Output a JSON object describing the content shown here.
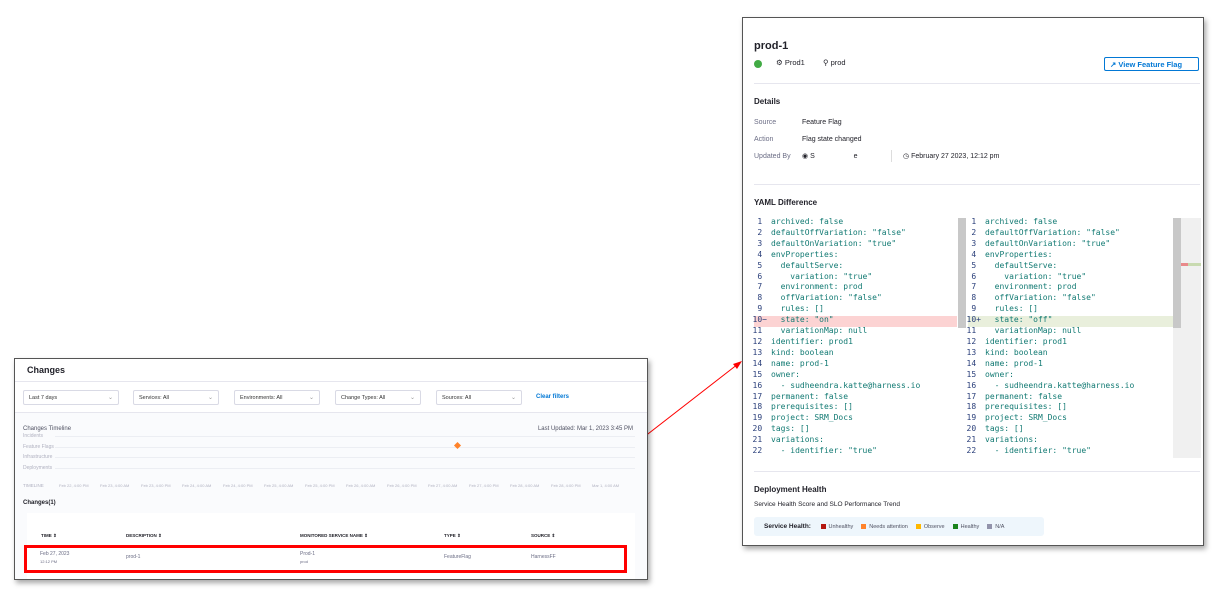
{
  "changes_panel": {
    "title": "Changes",
    "filters": [
      "Last 7 days",
      "Services: All",
      "Environments: All",
      "Change Types: All",
      "Sources: All"
    ],
    "clear_filters": "Clear filters",
    "timeline_title": "Changes Timeline",
    "last_updated": "Last Updated: Mar 1, 2023 3:45 PM",
    "lanes": [
      "Incidents",
      "Feature Flags",
      "Infrastructure",
      "Deployments"
    ],
    "timeline_label": "TIMELINE",
    "ticks": [
      "Feb 22, 4:00 PM",
      "Feb 23, 4:00 AM",
      "Feb 23, 4:00 PM",
      "Feb 24, 4:00 AM",
      "Feb 24, 4:00 PM",
      "Feb 25, 4:00 AM",
      "Feb 25, 4:00 PM",
      "Feb 26, 4:00 AM",
      "Feb 26, 4:00 PM",
      "Feb 27, 4:00 AM",
      "Feb 27, 4:00 PM",
      "Feb 28, 4:00 AM",
      "Feb 28, 4:00 PM",
      "Mar 1, 4:00 AM"
    ],
    "changes_count": "Changes(1)",
    "columns": [
      "TIME",
      "DESCRIPTION",
      "MONITORED SERVICE NAME",
      "TYPE",
      "SOURCE"
    ],
    "rows": [
      {
        "date": "Feb 27, 2023",
        "time": "12:12 PM",
        "description": "prod-1",
        "service": "Prod-1",
        "service_env": "prod",
        "type": "FeatureFlag",
        "source": "HarnessFF"
      }
    ],
    "marker_color": "#ff832b"
  },
  "detail_panel": {
    "title": "prod-1",
    "service": "Prod1",
    "environment": "prod",
    "view_button": "View Feature Flag",
    "details_heading": "Details",
    "source_label": "Source",
    "source_value": "Feature Flag",
    "action_label": "Action",
    "action_value": "Flag state changed",
    "updated_by_label": "Updated By",
    "updated_by_value": "S                    e",
    "updated_at": "February 27 2023, 12:12 pm",
    "yaml_heading": "YAML Difference",
    "yaml_left": [
      "archived: false",
      "defaultOffVariation: \"false\"",
      "defaultOnVariation: \"true\"",
      "envProperties:",
      "  defaultServe:",
      "    variation: \"true\"",
      "  environment: prod",
      "  offVariation: \"false\"",
      "  rules: []",
      "  state: \"on\"",
      "  variationMap: null",
      "identifier: prod1",
      "kind: boolean",
      "name: prod-1",
      "owner:",
      "  - sudheendra.katte@harness.io",
      "permanent: false",
      "prerequisites: []",
      "project: SRM_Docs",
      "tags: []",
      "variations:",
      "  - identifier: \"true\""
    ],
    "yaml_right": [
      "archived: false",
      "defaultOffVariation: \"false\"",
      "defaultOnVariation: \"true\"",
      "envProperties:",
      "  defaultServe:",
      "    variation: \"true\"",
      "  environment: prod",
      "  offVariation: \"false\"",
      "  rules: []",
      "  state: \"off\"",
      "  variationMap: null",
      "identifier: prod1",
      "kind: boolean",
      "name: prod-1",
      "owner:",
      "  - sudheendra.katte@harness.io",
      "permanent: false",
      "prerequisites: []",
      "project: SRM_Docs",
      "tags: []",
      "variations:",
      "  - identifier: \"true\""
    ],
    "changed_line": 10,
    "health_heading": "Deployment Health",
    "health_sub": "Service Health Score and SLO Performance Trend",
    "health_label": "Service Health:",
    "legend": [
      {
        "label": "Unhealthy",
        "color": "#b41710"
      },
      {
        "label": "Needs attention",
        "color": "#ff832b"
      },
      {
        "label": "Observe",
        "color": "#ffb800"
      },
      {
        "label": "Healthy",
        "color": "#1b841d"
      },
      {
        "label": "N/A",
        "color": "#9293ab"
      }
    ]
  }
}
